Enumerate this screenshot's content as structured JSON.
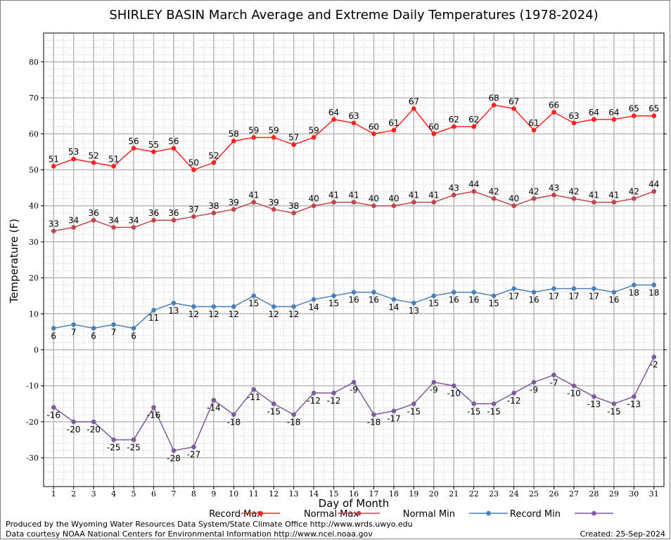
{
  "chart_data": {
    "type": "line",
    "title": "SHIRLEY BASIN March Average and Extreme Daily Temperatures (1978-2024)",
    "xlabel": "Day of Month",
    "ylabel": "Temperature (F)",
    "ylim": [
      -38,
      88
    ],
    "xlim": [
      0.5,
      31.5
    ],
    "yticks": [
      -30,
      -20,
      -10,
      0,
      10,
      20,
      30,
      40,
      50,
      60,
      70,
      80
    ],
    "x": [
      1,
      2,
      3,
      4,
      5,
      6,
      7,
      8,
      9,
      10,
      11,
      12,
      13,
      14,
      15,
      16,
      17,
      18,
      19,
      20,
      21,
      22,
      23,
      24,
      25,
      26,
      27,
      28,
      29,
      30,
      31
    ],
    "grid": true,
    "legend_position": "bottom",
    "series": [
      {
        "name": "Record Max",
        "color": "#ff2020",
        "label_position": "above",
        "values": [
          51,
          53,
          52,
          51,
          56,
          55,
          56,
          50,
          52,
          58,
          59,
          59,
          57,
          59,
          64,
          63,
          60,
          61,
          67,
          60,
          62,
          62,
          68,
          67,
          61,
          66,
          63,
          64,
          64,
          65,
          65
        ]
      },
      {
        "name": "Normal Max",
        "color": "#c0464b",
        "label_position": "above",
        "values": [
          33,
          34,
          36,
          34,
          34,
          36,
          36,
          37,
          38,
          39,
          41,
          39,
          38,
          40,
          41,
          41,
          40,
          40,
          41,
          41,
          43,
          44,
          42,
          40,
          42,
          43,
          42,
          41,
          41,
          42,
          44
        ]
      },
      {
        "name": "Normal Min",
        "color": "#4a80b8",
        "label_position": "below",
        "values": [
          6,
          7,
          6,
          7,
          6,
          11,
          13,
          12,
          12,
          12,
          15,
          12,
          12,
          14,
          15,
          16,
          16,
          14,
          13,
          15,
          16,
          16,
          15,
          17,
          16,
          17,
          17,
          17,
          16,
          18,
          18
        ]
      },
      {
        "name": "Record Min",
        "color": "#7e5a9e",
        "label_position": "below",
        "values": [
          -16,
          -20,
          -20,
          -25,
          -25,
          -16,
          -28,
          -27,
          -14,
          -18,
          -11,
          -15,
          -18,
          -12,
          -12,
          -9,
          -18,
          -17,
          -15,
          -9,
          -10,
          -15,
          -15,
          -12,
          -9,
          -7,
          -10,
          -13,
          -15,
          -13,
          -2
        ]
      }
    ]
  },
  "footer": {
    "credit_line1": "Produced by the Wyoming Water Resources Data System/State Climate Office http://www.wrds.uwyo.edu",
    "credit_line2": "Data courtesy NOAA National Centers for Environmental Information http://www.ncei.noaa.gov",
    "created": "Created:  25-Sep-2024"
  }
}
